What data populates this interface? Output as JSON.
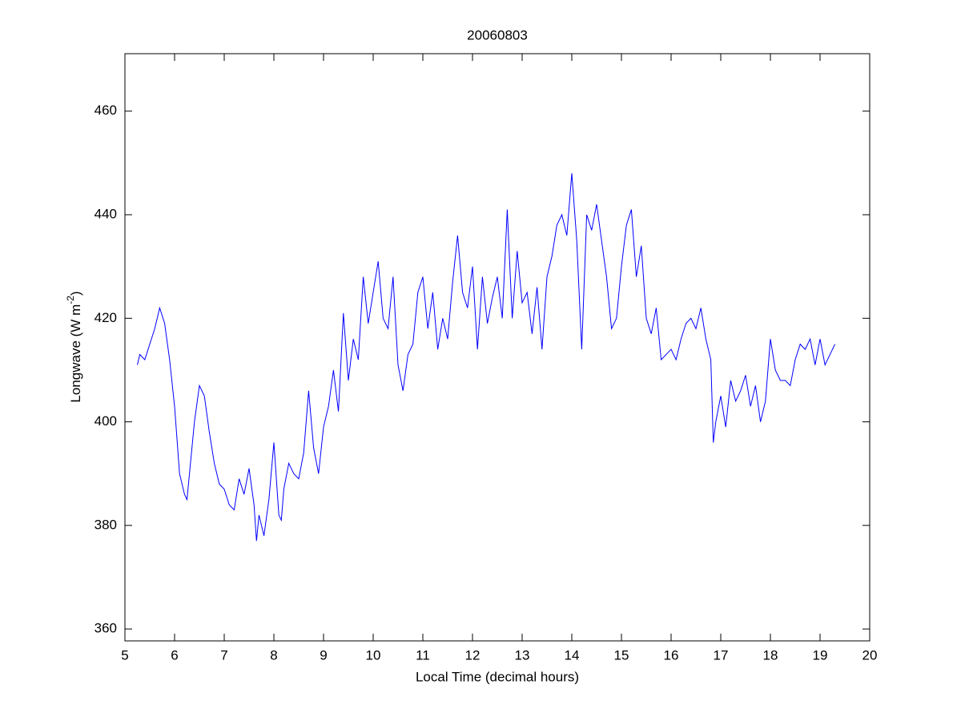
{
  "chart_data": {
    "type": "line",
    "title": "20060803",
    "x_label": "Local Time (decimal hours)",
    "y_label": {
      "text": "Longwave (W m",
      "superscript": "-2",
      "suffix": ")"
    },
    "xlim": [
      5,
      20
    ],
    "xticks": [
      5,
      6,
      7,
      8,
      9,
      10,
      11,
      12,
      13,
      14,
      15,
      16,
      17,
      18,
      19,
      20
    ],
    "ylim": [
      357.7,
      471.1
    ],
    "yticks": [
      360,
      380,
      400,
      420,
      440,
      460
    ],
    "grid": false,
    "x": [
      5.25,
      5.3,
      5.4,
      5.5,
      5.6,
      5.7,
      5.8,
      5.9,
      6.0,
      6.1,
      6.2,
      6.25,
      6.3,
      6.4,
      6.5,
      6.6,
      6.7,
      6.8,
      6.9,
      7.0,
      7.1,
      7.2,
      7.3,
      7.4,
      7.5,
      7.6,
      7.65,
      7.7,
      7.8,
      7.9,
      8.0,
      8.1,
      8.15,
      8.2,
      8.3,
      8.4,
      8.5,
      8.6,
      8.7,
      8.8,
      8.9,
      9.0,
      9.1,
      9.2,
      9.3,
      9.4,
      9.5,
      9.6,
      9.7,
      9.8,
      9.9,
      10.0,
      10.1,
      10.2,
      10.3,
      10.4,
      10.5,
      10.6,
      10.7,
      10.8,
      10.9,
      11.0,
      11.1,
      11.2,
      11.3,
      11.4,
      11.5,
      11.6,
      11.7,
      11.8,
      11.9,
      12.0,
      12.1,
      12.2,
      12.3,
      12.4,
      12.5,
      12.6,
      12.7,
      12.8,
      12.9,
      13.0,
      13.1,
      13.2,
      13.3,
      13.4,
      13.5,
      13.6,
      13.7,
      13.8,
      13.9,
      14.0,
      14.1,
      14.2,
      14.3,
      14.4,
      14.5,
      14.6,
      14.7,
      14.8,
      14.9,
      15.0,
      15.1,
      15.2,
      15.3,
      15.4,
      15.5,
      15.6,
      15.7,
      15.8,
      15.9,
      16.0,
      16.1,
      16.2,
      16.3,
      16.4,
      16.5,
      16.6,
      16.7,
      16.8,
      16.85,
      16.9,
      17.0,
      17.1,
      17.2,
      17.3,
      17.4,
      17.5,
      17.6,
      17.7,
      17.8,
      17.9,
      18.0,
      18.1,
      18.2,
      18.3,
      18.4,
      18.5,
      18.6,
      18.7,
      18.8,
      18.9,
      19.0,
      19.1,
      19.2,
      19.3
    ],
    "series": [
      {
        "color": "#0000ff",
        "values": [
          411,
          413,
          412,
          415,
          418,
          422,
          419,
          412,
          403,
          390,
          386,
          385,
          390,
          400,
          407,
          405,
          398,
          392,
          388,
          387,
          384,
          383,
          389,
          386,
          391,
          384,
          377,
          382,
          378,
          385,
          396,
          382,
          381,
          387,
          392,
          390,
          389,
          394,
          406,
          395,
          390,
          399,
          403,
          410,
          402,
          421,
          408,
          416,
          412,
          428,
          419,
          425,
          431,
          420,
          418,
          428,
          411,
          406,
          413,
          415,
          425,
          428,
          418,
          425,
          414,
          420,
          416,
          427,
          436,
          425,
          422,
          430,
          414,
          428,
          419,
          424,
          428,
          420,
          441,
          420,
          433,
          423,
          425,
          417,
          426,
          414,
          428,
          432,
          438,
          440,
          436,
          448,
          435,
          414,
          440,
          437,
          442,
          435,
          428,
          418,
          420,
          430,
          438,
          441,
          428,
          434,
          420,
          417,
          422,
          412,
          413,
          414,
          412,
          416,
          419,
          420,
          418,
          422,
          416,
          412,
          396,
          400,
          405,
          399,
          408,
          404,
          406,
          409,
          403,
          407,
          400,
          404,
          416,
          410,
          408,
          408,
          407,
          412,
          415,
          414,
          416,
          411,
          416,
          411,
          413,
          415
        ]
      }
    ]
  }
}
